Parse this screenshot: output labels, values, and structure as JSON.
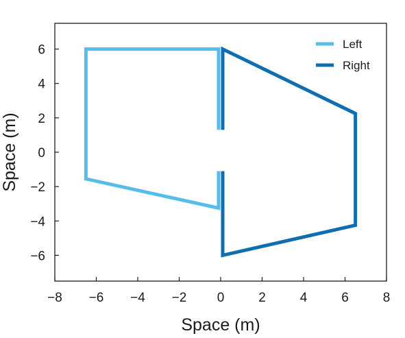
{
  "chart_data": {
    "type": "line",
    "title": "",
    "xlabel": "Space (m)",
    "ylabel": "Space (m)",
    "xlim": [
      -8,
      8
    ],
    "ylim": [
      -7.5,
      7.5
    ],
    "xticks": [
      -8,
      -6,
      -4,
      -2,
      0,
      2,
      4,
      6,
      8
    ],
    "yticks": [
      -6,
      -4,
      -2,
      0,
      2,
      4,
      6
    ],
    "xtick_labels": [
      "−8",
      "−6",
      "−4",
      "−2",
      "0",
      "2",
      "4",
      "6",
      "8"
    ],
    "ytick_labels": [
      "−6",
      "−4",
      "−2",
      "0",
      "2",
      "4",
      "6"
    ],
    "grid": false,
    "legend_position": "top-right",
    "series": [
      {
        "name": "Left",
        "color": "#56bde8",
        "x": [
          -0.1,
          -0.1,
          -6.5,
          -6.5,
          -0.1,
          -0.1
        ],
        "y": [
          1.3,
          6.0,
          6.0,
          -1.55,
          -3.25,
          -1.1
        ]
      },
      {
        "name": "Right",
        "color": "#0f6eb0",
        "x": [
          0.1,
          0.1,
          6.5,
          6.5,
          0.1,
          0.1
        ],
        "y": [
          1.3,
          6.0,
          2.25,
          -4.25,
          -6.0,
          -1.1
        ]
      }
    ]
  }
}
